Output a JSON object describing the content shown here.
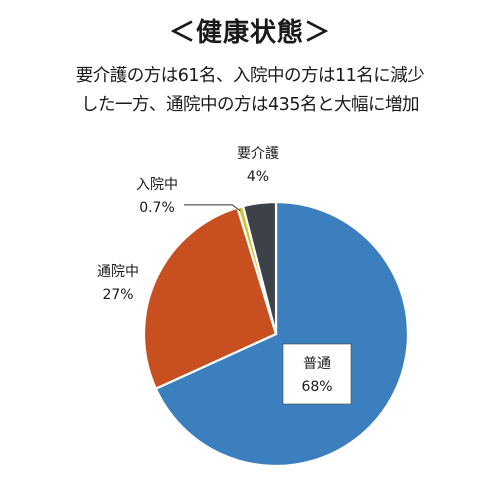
{
  "title": "＜健康状態＞",
  "subtitle_lines": [
    "要介護の方は61名、入院中の方は11名に減少",
    "した一方、通院中の方は435名と大幅に増加"
  ],
  "chart_data": {
    "type": "pie",
    "slices": [
      {
        "name": "普通",
        "value": 68,
        "label": "68%",
        "color": "#3c7fbe"
      },
      {
        "name": "通院中",
        "value": 27,
        "label": "27%",
        "color": "#c84f1f"
      },
      {
        "name": "入院中",
        "value": 0.7,
        "label": "0.7%",
        "color": "#c8c830"
      },
      {
        "name": "要介護",
        "value": 4,
        "label": "4%",
        "color": "#3d4148"
      }
    ]
  }
}
